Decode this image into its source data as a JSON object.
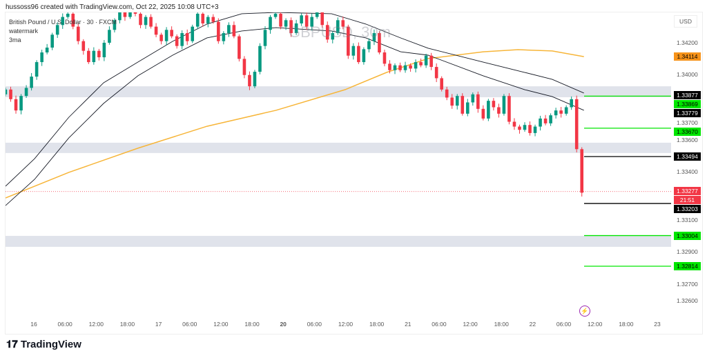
{
  "header": {
    "credit": "hussoss96 created with TradingView.com, Oct 22, 2025 10:08 UTC+3"
  },
  "legend": {
    "symbol": "British Pound / U.S. Dollar · 30 · FXCM",
    "line2": "watermark",
    "line3": "3ma"
  },
  "watermark": "GBPUSD, 30m",
  "currency": "USD",
  "brand": "TradingView",
  "icons": {
    "alert": "lightning-icon",
    "logo": "tradingview-logo-icon"
  },
  "chart_data": {
    "type": "candlestick",
    "timeframe": "30m",
    "ylim": [
      1.3255,
      1.344
    ],
    "y_ticks": [
      "1.34200",
      "1.34000",
      "1.33700",
      "1.33600",
      "1.33400",
      "1.33100",
      "1.32900",
      "1.32700",
      "1.32600"
    ],
    "y_tick_values": [
      1.342,
      1.34,
      1.337,
      1.336,
      1.334,
      1.331,
      1.329,
      1.327,
      1.326
    ],
    "x_ticks": [
      "16",
      "06:00",
      "12:00",
      "18:00",
      "17",
      "06:00",
      "12:00",
      "18:00",
      "20",
      "06:00",
      "12:00",
      "18:00",
      "21",
      "06:00",
      "12:00",
      "18:00",
      "22",
      "06:00",
      "12:00",
      "18:00",
      "23"
    ],
    "first_open": 1.3388,
    "closes": [
      1.3391,
      1.3385,
      1.3378,
      1.3387,
      1.3392,
      1.3399,
      1.3408,
      1.3414,
      1.3417,
      1.3425,
      1.3431,
      1.3436,
      1.3438,
      1.343,
      1.3421,
      1.3415,
      1.3408,
      1.3415,
      1.3411,
      1.342,
      1.3428,
      1.3434,
      1.344,
      1.3436,
      1.3442,
      1.3438,
      1.3431,
      1.3436,
      1.343,
      1.3425,
      1.3421,
      1.3428,
      1.3424,
      1.3418,
      1.3426,
      1.3421,
      1.343,
      1.3438,
      1.3432,
      1.3436,
      1.3433,
      1.3421,
      1.3426,
      1.3431,
      1.3424,
      1.341,
      1.34,
      1.3393,
      1.3402,
      1.3418,
      1.3428,
      1.3436,
      1.3438,
      1.343,
      1.3434,
      1.3426,
      1.3432,
      1.3437,
      1.343,
      1.3436,
      1.3439,
      1.3431,
      1.3422,
      1.3426,
      1.3434,
      1.343,
      1.3412,
      1.3418,
      1.3408,
      1.3416,
      1.3421,
      1.3426,
      1.3414,
      1.3407,
      1.3403,
      1.3406,
      1.3403,
      1.3406,
      1.3404,
      1.3408,
      1.3406,
      1.3412,
      1.3405,
      1.3398,
      1.3391,
      1.3386,
      1.3381,
      1.3387,
      1.3376,
      1.3383,
      1.3388,
      1.3379,
      1.3373,
      1.3384,
      1.338,
      1.3376,
      1.3387,
      1.3371,
      1.3368,
      1.3366,
      1.3369,
      1.3364,
      1.3368,
      1.3373,
      1.337,
      1.3375,
      1.3378,
      1.3376,
      1.338,
      1.3385,
      1.3354,
      1.3327
    ],
    "ma_bars": [
      0,
      5.6,
      12.2,
      18.9,
      25.5,
      32.2,
      38.8,
      45.5,
      52.1,
      62.8,
      69.4,
      76.1,
      81.4,
      92,
      100,
      105.3,
      111.4
    ],
    "ma_upper": [
      1.3331,
      1.33481,
      1.33738,
      1.33952,
      1.3408,
      1.34209,
      1.34316,
      1.3438,
      1.34388,
      1.3438,
      1.34316,
      1.3423,
      1.34166,
      1.3408,
      1.34016,
      1.33973,
      1.33888
    ],
    "ma_lower": [
      1.3319,
      1.33353,
      1.3361,
      1.33824,
      1.33995,
      1.34123,
      1.3423,
      1.34273,
      1.34294,
      1.34273,
      1.3423,
      1.34144,
      1.34123,
      1.33995,
      1.33909,
      1.33866,
      1.33781
    ],
    "ma_orange_bars": [
      0,
      12.2,
      25.5,
      38.8,
      52.1,
      65.4,
      73.4,
      81.4,
      92,
      98.7,
      105.3,
      111.4
    ],
    "ma_orange": [
      1.33237,
      1.33396,
      1.33546,
      1.33682,
      1.33781,
      1.33909,
      1.34016,
      1.34102,
      1.34144,
      1.34157,
      1.34149,
      1.34114
    ],
    "zones": [
      [
        1.33862,
        1.3393
      ],
      [
        1.33516,
        1.3358
      ],
      [
        1.32934,
        1.33002
      ]
    ],
    "levels": [
      {
        "price": "1.33869",
        "color": "#00e600",
        "label_bg": "#00e600",
        "label_fg": "#000"
      },
      {
        "price": "1.33670",
        "color": "#00e600",
        "label_bg": "#00e600",
        "label_fg": "#000"
      },
      {
        "price": "1.33494",
        "color": "#000000",
        "label_bg": "#000",
        "label_fg": "#fff"
      },
      {
        "price": "1.33203",
        "color": "#000000",
        "label_bg": "#000",
        "label_fg": "#fff"
      },
      {
        "price": "1.33004",
        "color": "#00e600",
        "label_bg": "#00e600",
        "label_fg": "#000"
      },
      {
        "price": "1.32814",
        "color": "#00e600",
        "label_bg": "#00e600",
        "label_fg": "#000"
      }
    ],
    "axis_labels": [
      {
        "price": "1.34114",
        "bg": "#f7931a",
        "fg": "#000"
      },
      {
        "price": "1.33877",
        "bg": "#000",
        "fg": "#fff"
      },
      {
        "price": "1.33779",
        "bg": "#000",
        "fg": "#fff"
      }
    ],
    "last_price": {
      "price": "1.33277",
      "countdown": "21:51",
      "bg": "#f23645"
    },
    "colors": {
      "up": "#089981",
      "down": "#f23645",
      "ma_orange": "#f7b538",
      "ma_black": "#131722",
      "zone": "#e0e3eb"
    }
  }
}
